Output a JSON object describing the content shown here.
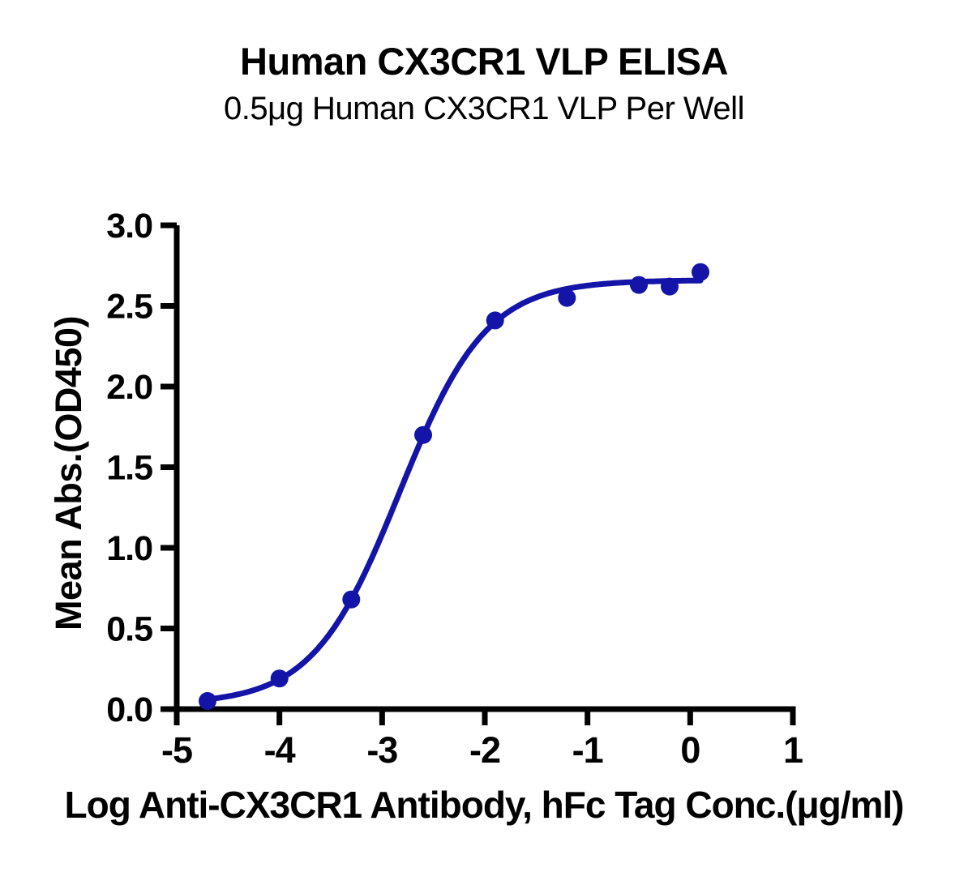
{
  "page": {
    "background": "#FFFFFF"
  },
  "chart_data": {
    "type": "scatter",
    "title": "Human CX3CR1 VLP ELISA",
    "subtitle": "0.5μg Human CX3CR1 VLP Per Well",
    "xlabel": "Log Anti-CX3CR1 Antibody, hFc Tag Conc.(μg/ml)",
    "ylabel": "Mean Abs.(OD450)",
    "xlim": [
      -5,
      1
    ],
    "ylim": [
      0,
      3
    ],
    "x_ticks": [
      -5,
      -4,
      -3,
      -2,
      -1,
      0,
      1
    ],
    "x_tick_labels": [
      "-5",
      "-4",
      "-3",
      "-2",
      "-1",
      "0",
      "1"
    ],
    "y_ticks": [
      0,
      0.5,
      1,
      1.5,
      2,
      2.5,
      3
    ],
    "y_tick_labels": [
      "0.0",
      "0.5",
      "1.0",
      "1.5",
      "2.0",
      "2.5",
      "3.0"
    ],
    "grid": false,
    "legend": false,
    "series": [
      {
        "name": "Anti-CX3CR1 Antibody, hFc Tag",
        "marker": "circle",
        "color": "#1414A8",
        "x": [
          -4.7,
          -4.0,
          -3.3,
          -2.6,
          -1.9,
          -1.2,
          -0.5,
          -0.2,
          0.1
        ],
        "y": [
          0.05,
          0.19,
          0.68,
          1.7,
          2.41,
          2.55,
          2.63,
          2.62,
          2.71
        ]
      }
    ],
    "fit_curve": {
      "model": "4PL",
      "bottom": 0.03,
      "top": 2.66,
      "log_ec50": -2.83,
      "hill_slope": 1.03,
      "x_start": -4.72,
      "x_end": 0.1,
      "color": "#1414A8"
    },
    "axis_color": "#000000",
    "text_color": "#000000"
  }
}
